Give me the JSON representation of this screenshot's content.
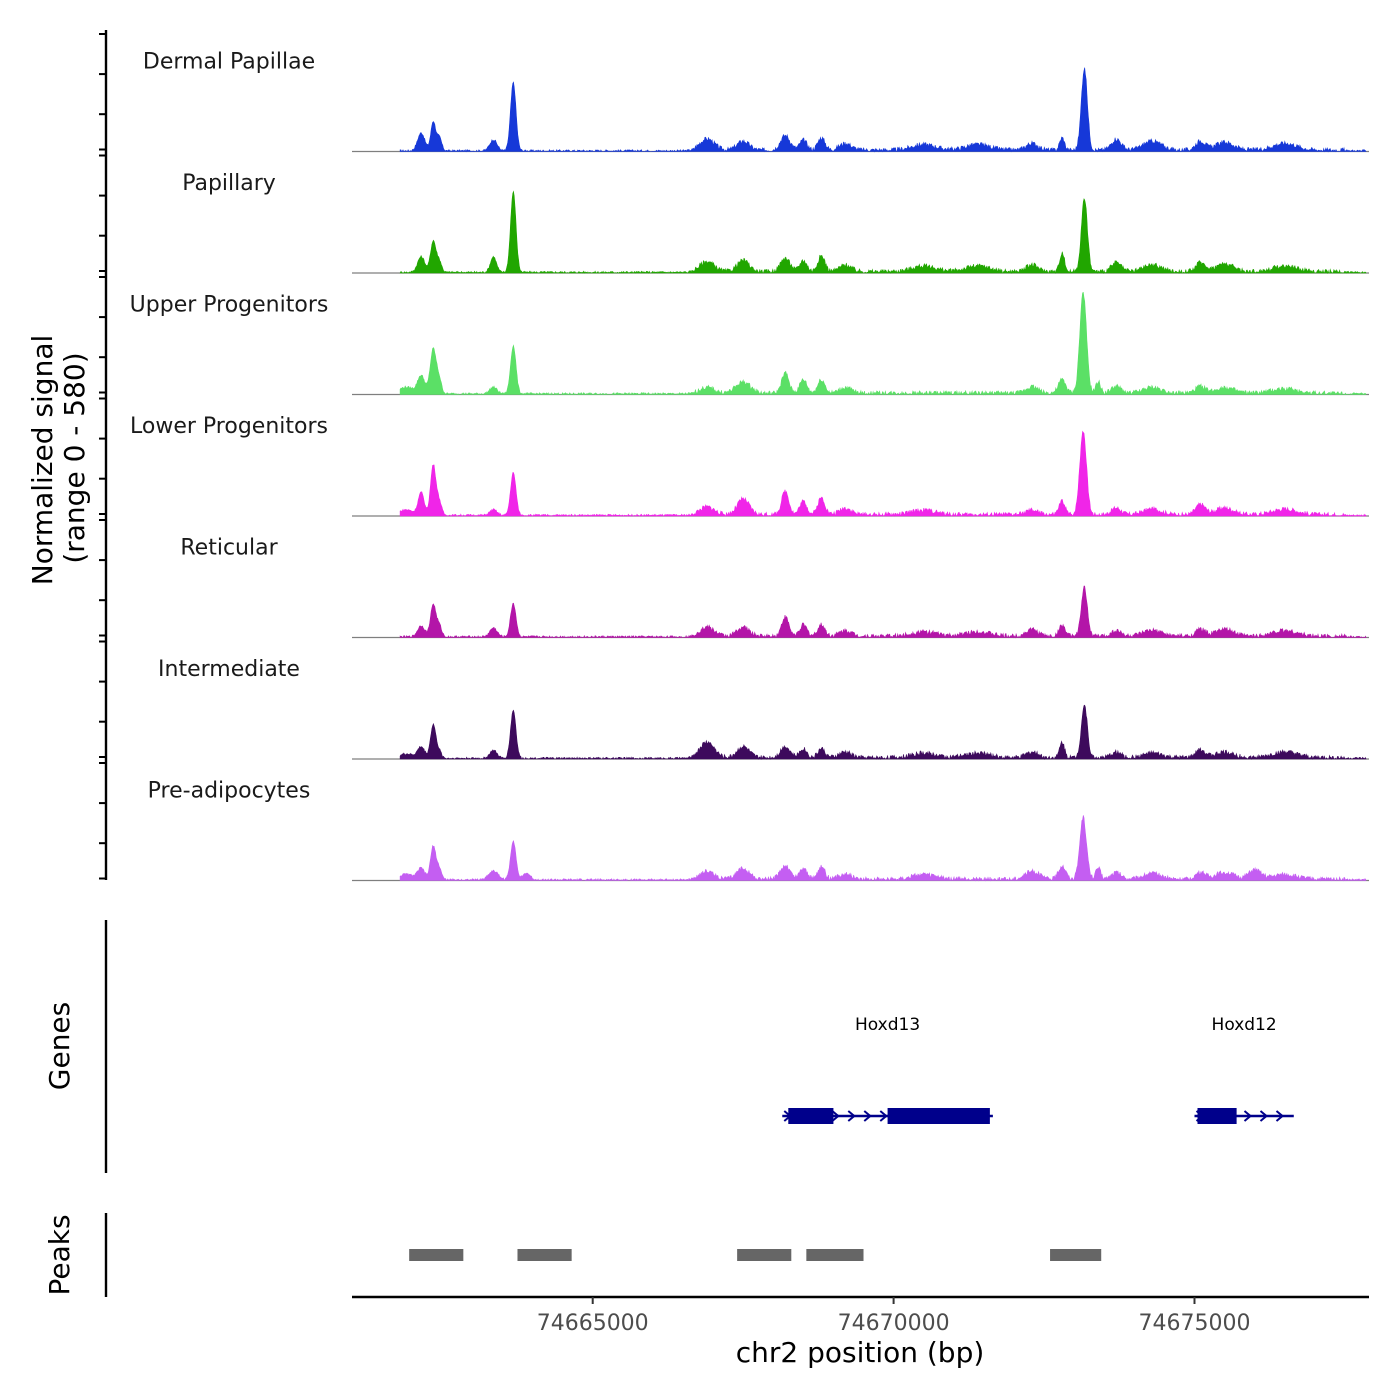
{
  "chart_data": {
    "type": "area",
    "title": "",
    "ylabel_line1": "Normalized signal",
    "ylabel_line2": "(range 0 - 580)",
    "y_range": [
      0,
      580
    ],
    "xlabel": "chr2 position (bp)",
    "xlim": [
      74661000,
      74677900
    ],
    "x_ticks": [
      74665000,
      74670000,
      74675000
    ],
    "x_tick_labels": [
      "74665000",
      "74670000",
      "74675000"
    ],
    "signal_start": 74661800,
    "signal_end": 74677850,
    "tracks": [
      {
        "name": "Dermal Papillae",
        "color": "#1638d8",
        "peaks": [
          [
            74662150,
            0.16,
            60
          ],
          [
            74662350,
            0.26,
            40
          ],
          [
            74662450,
            0.12,
            40
          ],
          [
            74663350,
            0.1,
            60
          ],
          [
            74663680,
            0.61,
            45
          ],
          [
            74666900,
            0.1,
            120
          ],
          [
            74667500,
            0.08,
            100
          ],
          [
            74668200,
            0.13,
            80
          ],
          [
            74668500,
            0.09,
            60
          ],
          [
            74668800,
            0.11,
            60
          ],
          [
            74669200,
            0.06,
            100
          ],
          [
            74670500,
            0.05,
            200
          ],
          [
            74671400,
            0.05,
            200
          ],
          [
            74672300,
            0.06,
            100
          ],
          [
            74672800,
            0.11,
            40
          ],
          [
            74673170,
            0.73,
            50
          ],
          [
            74673700,
            0.1,
            80
          ],
          [
            74674300,
            0.08,
            150
          ],
          [
            74675100,
            0.08,
            80
          ],
          [
            74675500,
            0.07,
            150
          ],
          [
            74676500,
            0.06,
            200
          ]
        ]
      },
      {
        "name": "Papillary",
        "color": "#21a600",
        "peaks": [
          [
            74662150,
            0.14,
            60
          ],
          [
            74662350,
            0.28,
            45
          ],
          [
            74662450,
            0.1,
            40
          ],
          [
            74663350,
            0.14,
            50
          ],
          [
            74663680,
            0.72,
            45
          ],
          [
            74666900,
            0.09,
            120
          ],
          [
            74667500,
            0.1,
            100
          ],
          [
            74668200,
            0.12,
            80
          ],
          [
            74668500,
            0.1,
            60
          ],
          [
            74668800,
            0.14,
            60
          ],
          [
            74669200,
            0.06,
            100
          ],
          [
            74670500,
            0.05,
            200
          ],
          [
            74671400,
            0.05,
            200
          ],
          [
            74672300,
            0.06,
            100
          ],
          [
            74672800,
            0.17,
            40
          ],
          [
            74673170,
            0.65,
            50
          ],
          [
            74673700,
            0.08,
            80
          ],
          [
            74674300,
            0.06,
            150
          ],
          [
            74675100,
            0.08,
            80
          ],
          [
            74675500,
            0.07,
            150
          ],
          [
            74676500,
            0.05,
            200
          ]
        ]
      },
      {
        "name": "Upper Progenitors",
        "color": "#5be066",
        "peaks": [
          [
            74661900,
            0.06,
            120
          ],
          [
            74662150,
            0.16,
            60
          ],
          [
            74662350,
            0.4,
            50
          ],
          [
            74662450,
            0.12,
            40
          ],
          [
            74663350,
            0.06,
            60
          ],
          [
            74663680,
            0.43,
            45
          ],
          [
            74666900,
            0.05,
            120
          ],
          [
            74667500,
            0.1,
            120
          ],
          [
            74668200,
            0.18,
            60
          ],
          [
            74668500,
            0.12,
            60
          ],
          [
            74668800,
            0.12,
            60
          ],
          [
            74669200,
            0.05,
            100
          ],
          [
            74672300,
            0.06,
            100
          ],
          [
            74672800,
            0.12,
            60
          ],
          [
            74673150,
            0.9,
            55
          ],
          [
            74673400,
            0.1,
            40
          ],
          [
            74673700,
            0.06,
            80
          ],
          [
            74674300,
            0.05,
            150
          ],
          [
            74675100,
            0.06,
            80
          ],
          [
            74675500,
            0.05,
            150
          ],
          [
            74676500,
            0.04,
            200
          ]
        ]
      },
      {
        "name": "Lower Progenitors",
        "color": "#f025e8",
        "peaks": [
          [
            74661900,
            0.05,
            120
          ],
          [
            74662150,
            0.2,
            50
          ],
          [
            74662350,
            0.45,
            45
          ],
          [
            74662450,
            0.12,
            40
          ],
          [
            74663350,
            0.05,
            60
          ],
          [
            74663680,
            0.38,
            45
          ],
          [
            74666900,
            0.07,
            120
          ],
          [
            74667500,
            0.14,
            100
          ],
          [
            74668200,
            0.21,
            60
          ],
          [
            74668500,
            0.12,
            60
          ],
          [
            74668800,
            0.15,
            60
          ],
          [
            74669200,
            0.06,
            100
          ],
          [
            74670500,
            0.04,
            200
          ],
          [
            74672300,
            0.04,
            100
          ],
          [
            74672800,
            0.12,
            50
          ],
          [
            74673150,
            0.75,
            55
          ],
          [
            74673700,
            0.06,
            80
          ],
          [
            74674300,
            0.05,
            150
          ],
          [
            74675100,
            0.09,
            80
          ],
          [
            74675500,
            0.06,
            150
          ],
          [
            74676500,
            0.05,
            200
          ]
        ]
      },
      {
        "name": "Reticular",
        "color": "#b315a8",
        "peaks": [
          [
            74662150,
            0.1,
            60
          ],
          [
            74662350,
            0.29,
            45
          ],
          [
            74662450,
            0.1,
            40
          ],
          [
            74663350,
            0.08,
            60
          ],
          [
            74663680,
            0.3,
            45
          ],
          [
            74666900,
            0.08,
            120
          ],
          [
            74667500,
            0.08,
            100
          ],
          [
            74668200,
            0.17,
            60
          ],
          [
            74668500,
            0.1,
            60
          ],
          [
            74668800,
            0.1,
            60
          ],
          [
            74669200,
            0.05,
            100
          ],
          [
            74670500,
            0.04,
            200
          ],
          [
            74671400,
            0.04,
            200
          ],
          [
            74672300,
            0.06,
            100
          ],
          [
            74672800,
            0.1,
            50
          ],
          [
            74673170,
            0.43,
            50
          ],
          [
            74673700,
            0.05,
            80
          ],
          [
            74674300,
            0.05,
            150
          ],
          [
            74675100,
            0.06,
            80
          ],
          [
            74675500,
            0.06,
            150
          ],
          [
            74676500,
            0.05,
            200
          ]
        ]
      },
      {
        "name": "Intermediate",
        "color": "#3d0a5c",
        "peaks": [
          [
            74661900,
            0.04,
            120
          ],
          [
            74662150,
            0.1,
            60
          ],
          [
            74662350,
            0.3,
            45
          ],
          [
            74662450,
            0.06,
            40
          ],
          [
            74663350,
            0.07,
            60
          ],
          [
            74663680,
            0.43,
            45
          ],
          [
            74666900,
            0.14,
            120
          ],
          [
            74667500,
            0.1,
            100
          ],
          [
            74668200,
            0.1,
            80
          ],
          [
            74668500,
            0.08,
            60
          ],
          [
            74668800,
            0.08,
            60
          ],
          [
            74669200,
            0.05,
            100
          ],
          [
            74670500,
            0.04,
            200
          ],
          [
            74671400,
            0.04,
            200
          ],
          [
            74672300,
            0.05,
            100
          ],
          [
            74672800,
            0.14,
            40
          ],
          [
            74673170,
            0.47,
            50
          ],
          [
            74673700,
            0.05,
            80
          ],
          [
            74674300,
            0.04,
            150
          ],
          [
            74675100,
            0.07,
            80
          ],
          [
            74675500,
            0.05,
            150
          ],
          [
            74676500,
            0.05,
            200
          ]
        ]
      },
      {
        "name": "Pre-adipocytes",
        "color": "#c45ef2",
        "peaks": [
          [
            74661900,
            0.05,
            120
          ],
          [
            74662150,
            0.1,
            60
          ],
          [
            74662350,
            0.3,
            45
          ],
          [
            74662450,
            0.1,
            40
          ],
          [
            74663350,
            0.08,
            80
          ],
          [
            74663680,
            0.35,
            45
          ],
          [
            74663900,
            0.06,
            60
          ],
          [
            74666900,
            0.07,
            120
          ],
          [
            74667500,
            0.1,
            100
          ],
          [
            74668200,
            0.12,
            80
          ],
          [
            74668500,
            0.1,
            60
          ],
          [
            74668800,
            0.11,
            60
          ],
          [
            74669200,
            0.05,
            100
          ],
          [
            74670500,
            0.04,
            200
          ],
          [
            74672300,
            0.07,
            120
          ],
          [
            74672800,
            0.12,
            60
          ],
          [
            74673150,
            0.55,
            55
          ],
          [
            74673400,
            0.1,
            40
          ],
          [
            74673700,
            0.06,
            80
          ],
          [
            74674300,
            0.05,
            150
          ],
          [
            74675100,
            0.06,
            80
          ],
          [
            74675500,
            0.06,
            150
          ],
          [
            74676000,
            0.08,
            100
          ],
          [
            74676500,
            0.04,
            200
          ]
        ]
      }
    ],
    "genes_label": "Genes",
    "genes": [
      {
        "name": "Hoxd13",
        "start": 74668150,
        "end": 74671650,
        "strand": "+",
        "color": "#00008b",
        "exons": [
          [
            74668250,
            74669000
          ],
          [
            74669900,
            74671600
          ]
        ]
      },
      {
        "name": "Hoxd12",
        "start": 74675000,
        "end": 74676650,
        "strand": "+",
        "color": "#00008b",
        "exons": [
          [
            74675050,
            74675700
          ]
        ]
      }
    ],
    "peaks_label": "Peaks",
    "peak_color": "#666666",
    "peak_regions": [
      [
        74661950,
        74662850
      ],
      [
        74663750,
        74664650
      ],
      [
        74667400,
        74668300
      ],
      [
        74668550,
        74669500
      ],
      [
        74672600,
        74673450
      ]
    ]
  }
}
